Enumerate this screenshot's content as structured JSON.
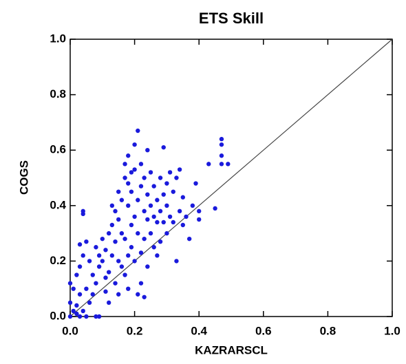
{
  "chart_data": {
    "type": "scatter",
    "title": "ETS Skill",
    "x_label": "KAZRARSCL",
    "y_label": "COGS",
    "color": "#1a1adc",
    "xlim": [
      0,
      1
    ],
    "ylim": [
      0,
      1
    ],
    "xticks": [
      {
        "value": 0,
        "label": "0.0"
      },
      {
        "value": 0.2,
        "label": "0.2"
      },
      {
        "value": 0.4,
        "label": "0.4"
      },
      {
        "value": 0.6,
        "label": "0.6"
      },
      {
        "value": 0.8,
        "label": "0.8"
      },
      {
        "value": 1,
        "label": "1.0"
      }
    ],
    "yticks": [
      {
        "value": 0,
        "label": "0.0"
      },
      {
        "value": 0.2,
        "label": "0.2"
      },
      {
        "value": 0.4,
        "label": "0.4"
      },
      {
        "value": 0.6,
        "label": "0.6"
      },
      {
        "value": 0.8,
        "label": "0.8"
      },
      {
        "value": 1,
        "label": "1.0"
      }
    ],
    "x": [
      0.0,
      0.01,
      0.02,
      0.03,
      0.0,
      0.02,
      0.04,
      0.05,
      0.01,
      0.0,
      0.03,
      0.06,
      0.08,
      0.09,
      0.05,
      0.07,
      0.02,
      0.03,
      0.04,
      0.03,
      0.05,
      0.04,
      0.04,
      0.06,
      0.07,
      0.08,
      0.08,
      0.09,
      0.1,
      0.1,
      0.11,
      0.11,
      0.12,
      0.12,
      0.13,
      0.13,
      0.14,
      0.14,
      0.14,
      0.15,
      0.15,
      0.15,
      0.16,
      0.16,
      0.16,
      0.17,
      0.17,
      0.17,
      0.17,
      0.18,
      0.18,
      0.18,
      0.18,
      0.18,
      0.19,
      0.19,
      0.19,
      0.19,
      0.2,
      0.2,
      0.2,
      0.2,
      0.21,
      0.21,
      0.21,
      0.21,
      0.22,
      0.22,
      0.22,
      0.22,
      0.23,
      0.23,
      0.23,
      0.23,
      0.24,
      0.24,
      0.24,
      0.24,
      0.25,
      0.25,
      0.25,
      0.26,
      0.26,
      0.26,
      0.27,
      0.27,
      0.27,
      0.28,
      0.28,
      0.28,
      0.29,
      0.29,
      0.29,
      0.3,
      0.3,
      0.3,
      0.31,
      0.31,
      0.32,
      0.32,
      0.33,
      0.33,
      0.34,
      0.34,
      0.35,
      0.35,
      0.36,
      0.37,
      0.38,
      0.39,
      0.4,
      0.4,
      0.43,
      0.45,
      0.47,
      0.47,
      0.47,
      0.47,
      0.49,
      0.09,
      0.11,
      0.12,
      0.13,
      0.15
    ],
    "y": [
      0.0,
      0.02,
      0.01,
      0.0,
      0.05,
      0.04,
      0.02,
      0.0,
      0.1,
      0.12,
      0.08,
      0.05,
      0.0,
      0.0,
      0.1,
      0.08,
      0.15,
      0.18,
      0.22,
      0.26,
      0.27,
      0.37,
      0.38,
      0.2,
      0.15,
      0.25,
      0.12,
      0.18,
      0.2,
      0.28,
      0.24,
      0.14,
      0.3,
      0.16,
      0.33,
      0.22,
      0.38,
      0.27,
      0.12,
      0.45,
      0.35,
      0.2,
      0.42,
      0.3,
      0.18,
      0.5,
      0.55,
      0.28,
      0.15,
      0.58,
      0.48,
      0.4,
      0.22,
      0.1,
      0.45,
      0.52,
      0.33,
      0.25,
      0.62,
      0.53,
      0.36,
      0.2,
      0.67,
      0.42,
      0.3,
      0.08,
      0.55,
      0.47,
      0.23,
      0.12,
      0.5,
      0.38,
      0.28,
      0.07,
      0.6,
      0.44,
      0.35,
      0.18,
      0.52,
      0.4,
      0.3,
      0.47,
      0.36,
      0.25,
      0.42,
      0.34,
      0.22,
      0.5,
      0.38,
      0.27,
      0.61,
      0.44,
      0.34,
      0.48,
      0.4,
      0.3,
      0.52,
      0.36,
      0.45,
      0.34,
      0.5,
      0.2,
      0.53,
      0.38,
      0.43,
      0.33,
      0.36,
      0.28,
      0.4,
      0.48,
      0.35,
      0.38,
      0.55,
      0.39,
      0.64,
      0.62,
      0.58,
      0.55,
      0.55,
      0.22,
      0.09,
      0.05,
      0.4,
      0.08
    ]
  }
}
